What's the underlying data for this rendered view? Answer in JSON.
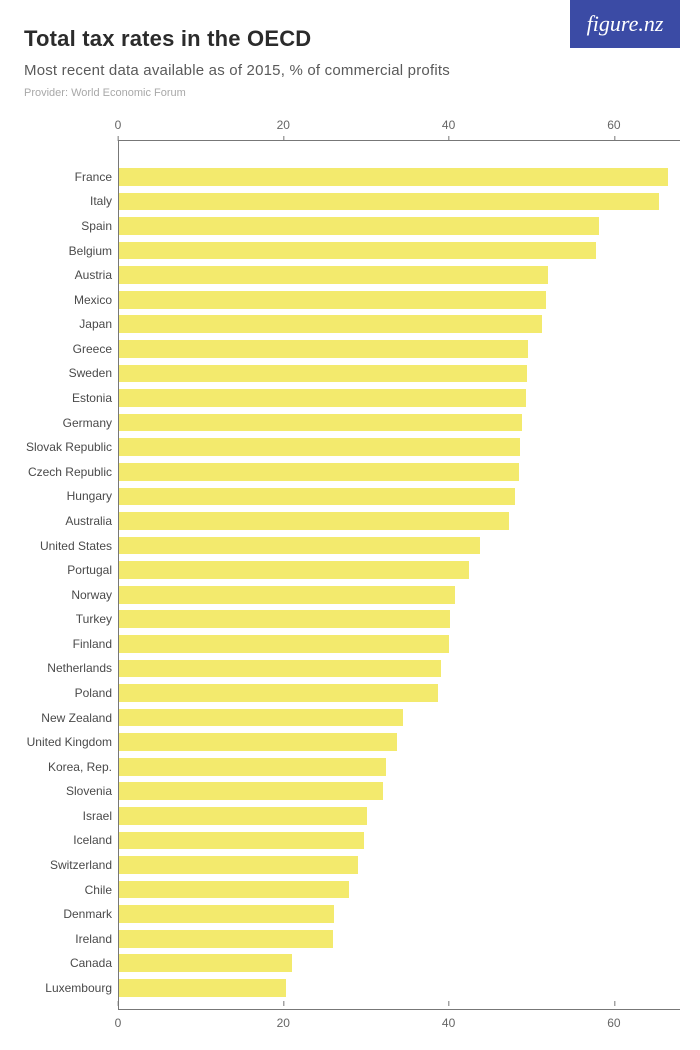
{
  "logo": {
    "text": "figure.nz"
  },
  "header": {
    "title": "Total tax rates in the OECD",
    "subtitle": "Most recent data available as of 2015, % of commercial profits",
    "provider": "Provider: World Economic Forum"
  },
  "chart": {
    "type": "bar",
    "orientation": "horizontal",
    "xmin": 0,
    "xmax": 68,
    "ticks": [
      0,
      20,
      40,
      60
    ],
    "bar_color": "#f3ea6d",
    "axis_color": "#777777",
    "label_color": "#4a4a4a",
    "label_fontsize": 12,
    "top_pad_rows": 1.0,
    "bottom_pad_rows": 0.4,
    "bar_fill_ratio": 0.72,
    "data": [
      {
        "label": "France",
        "value": 66.6
      },
      {
        "label": "Italy",
        "value": 65.4
      },
      {
        "label": "Spain",
        "value": 58.2
      },
      {
        "label": "Belgium",
        "value": 57.8
      },
      {
        "label": "Austria",
        "value": 52.0
      },
      {
        "label": "Mexico",
        "value": 51.8
      },
      {
        "label": "Japan",
        "value": 51.3
      },
      {
        "label": "Greece",
        "value": 49.6
      },
      {
        "label": "Sweden",
        "value": 49.4
      },
      {
        "label": "Estonia",
        "value": 49.3
      },
      {
        "label": "Germany",
        "value": 48.8
      },
      {
        "label": "Slovak Republic",
        "value": 48.6
      },
      {
        "label": "Czech Republic",
        "value": 48.5
      },
      {
        "label": "Hungary",
        "value": 48.0
      },
      {
        "label": "Australia",
        "value": 47.3
      },
      {
        "label": "United States",
        "value": 43.8
      },
      {
        "label": "Portugal",
        "value": 42.4
      },
      {
        "label": "Norway",
        "value": 40.7
      },
      {
        "label": "Turkey",
        "value": 40.1
      },
      {
        "label": "Finland",
        "value": 40.0
      },
      {
        "label": "Netherlands",
        "value": 39.0
      },
      {
        "label": "Poland",
        "value": 38.7
      },
      {
        "label": "New Zealand",
        "value": 34.4
      },
      {
        "label": "United Kingdom",
        "value": 33.7
      },
      {
        "label": "Korea, Rep.",
        "value": 32.4
      },
      {
        "label": "Slovenia",
        "value": 32.0
      },
      {
        "label": "Israel",
        "value": 30.1
      },
      {
        "label": "Iceland",
        "value": 29.7
      },
      {
        "label": "Switzerland",
        "value": 29.0
      },
      {
        "label": "Chile",
        "value": 27.9
      },
      {
        "label": "Denmark",
        "value": 26.0
      },
      {
        "label": "Ireland",
        "value": 25.9
      },
      {
        "label": "Canada",
        "value": 21.0
      },
      {
        "label": "Luxembourg",
        "value": 20.2
      }
    ]
  }
}
